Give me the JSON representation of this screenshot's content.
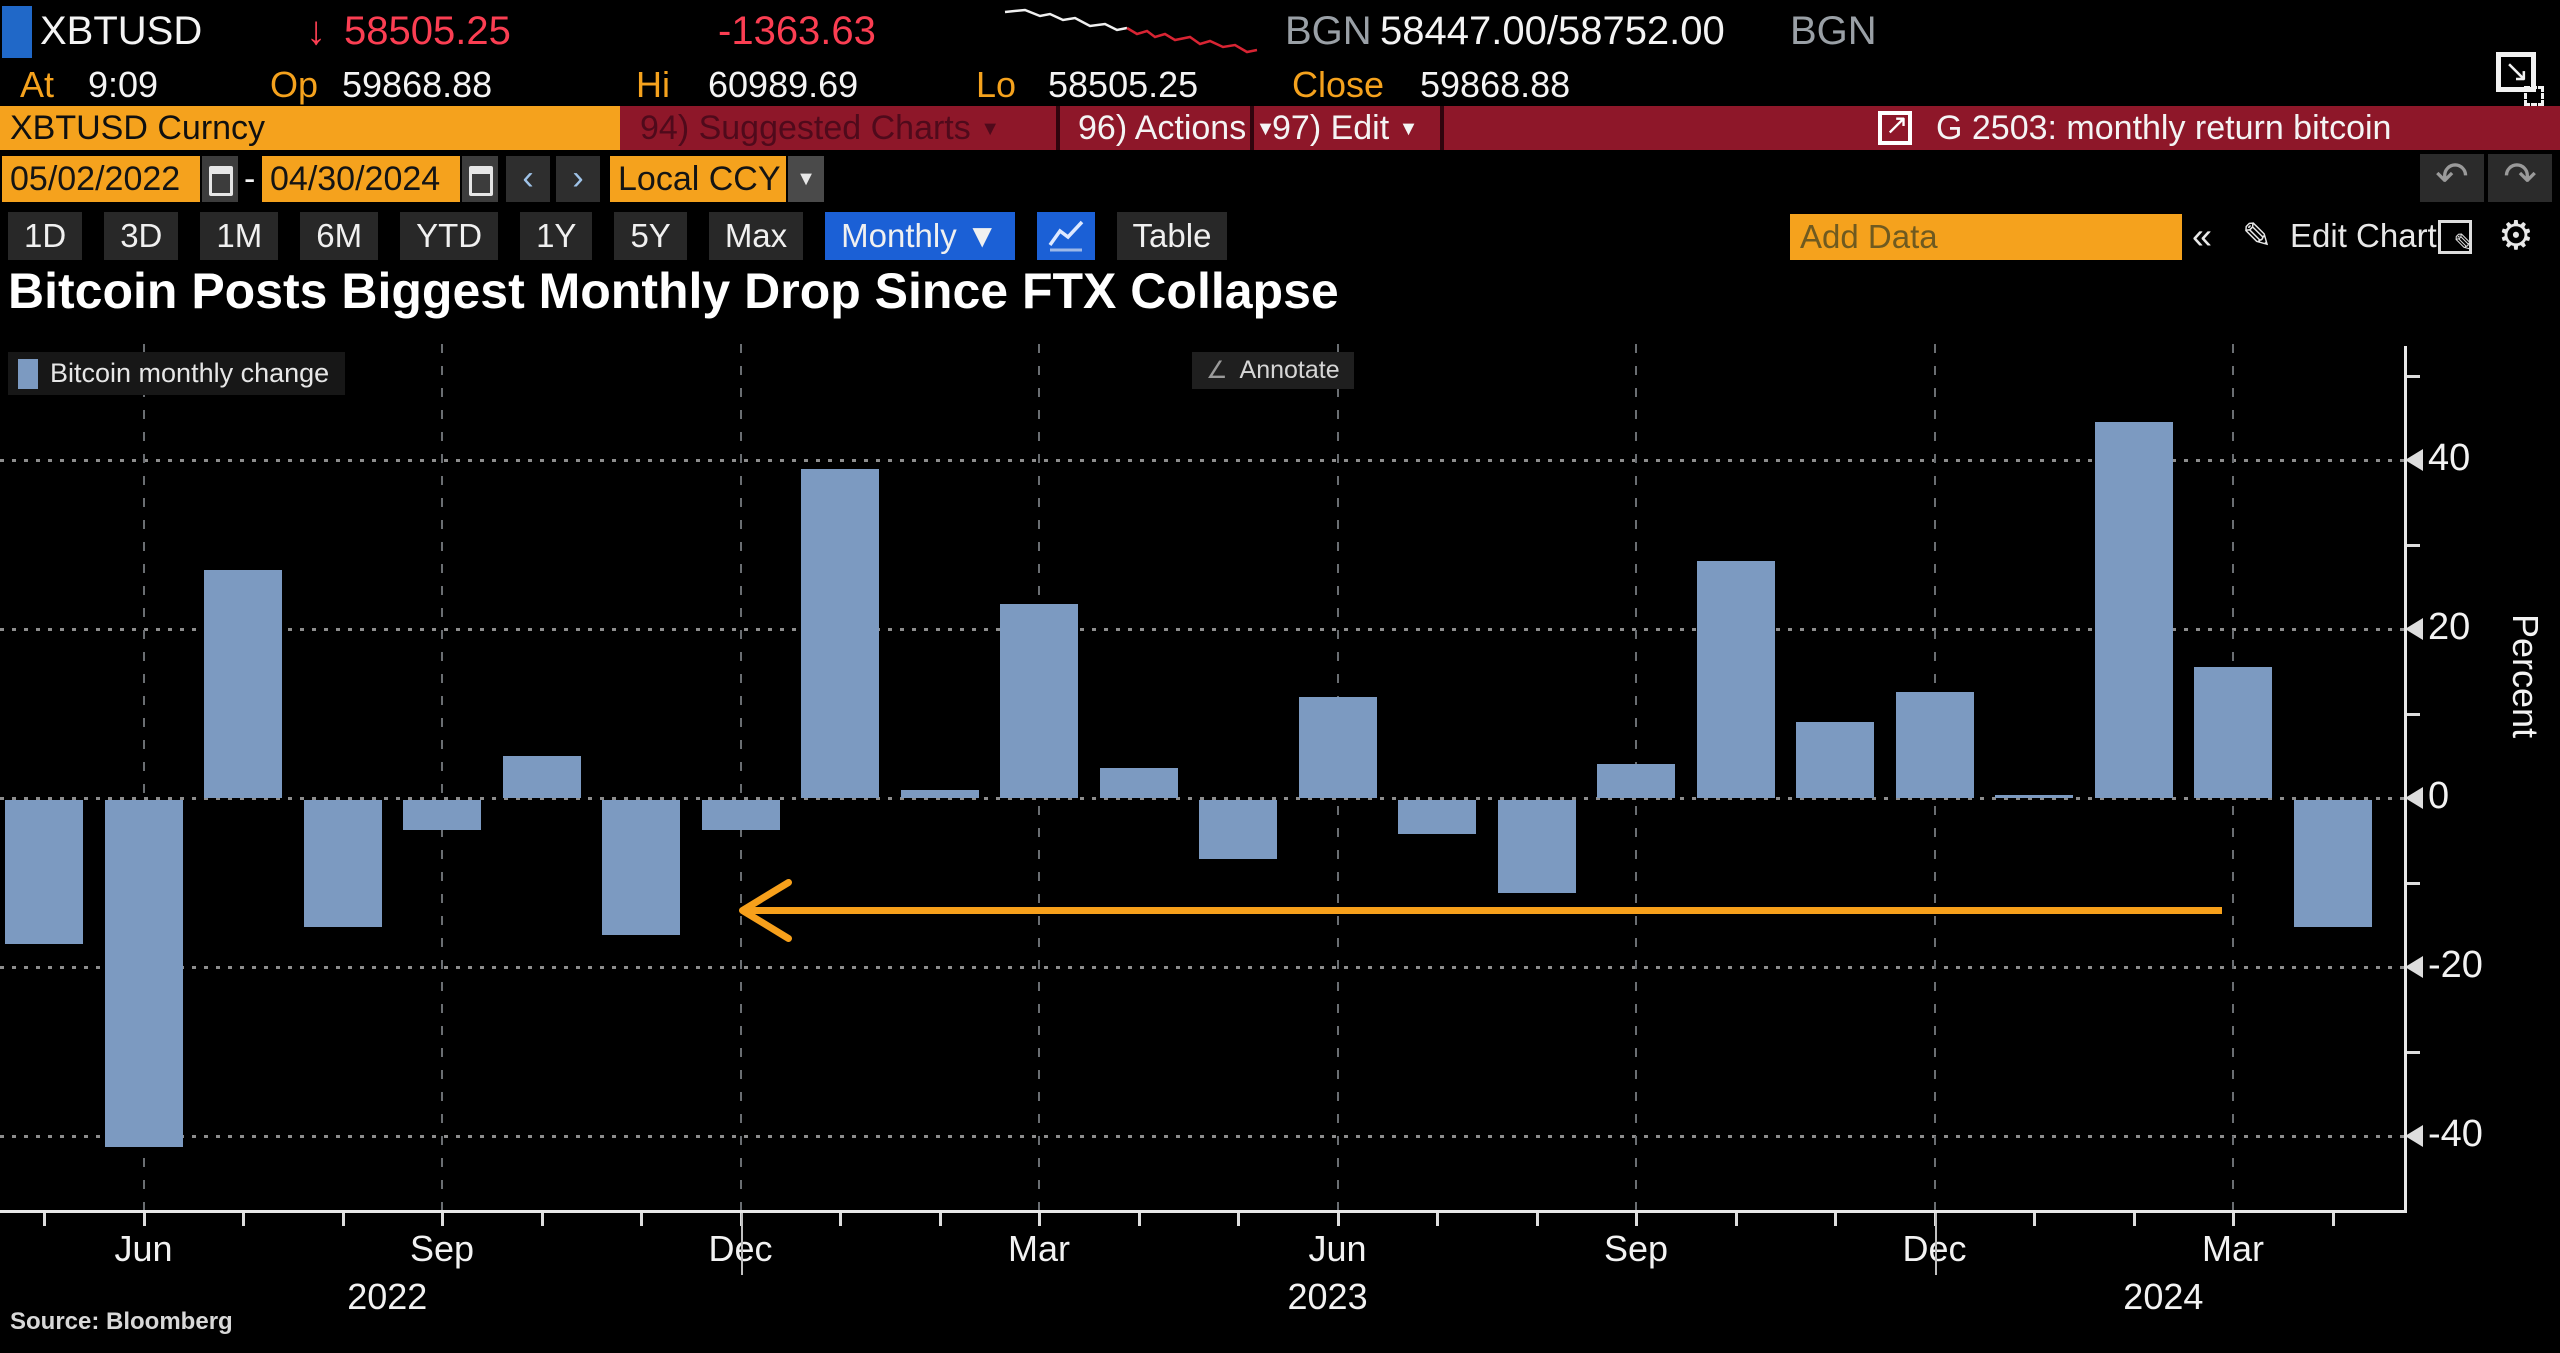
{
  "security_bar": {
    "ticker": "XBTUSD",
    "last_price": "58505.25",
    "change": "-1363.63",
    "source_badge_left": "BGN",
    "bid_ask": "58447.00/58752.00",
    "source_badge_right": "BGN",
    "at_label": "At",
    "at_time": "9:09",
    "open_label": "Op",
    "open_value": "59868.88",
    "high_label": "Hi",
    "high_value": "60989.69",
    "low_label": "Lo",
    "low_value": "58505.25",
    "close_label": "Close",
    "close_value": "59868.88"
  },
  "command_bar": {
    "security_field": "XBTUSD Curncy",
    "suggested_charts_label": "94) Suggested Charts",
    "actions_label": "96) Actions",
    "edit_label": "97) Edit",
    "chart_ref": "G 2503: monthly return bitcoin"
  },
  "toolbar": {
    "date_from": "05/02/2022",
    "date_separator": "-",
    "date_to": "04/30/2024",
    "currency_mode": "Local CCY",
    "periods": [
      "1D",
      "3D",
      "1M",
      "6M",
      "YTD",
      "1Y",
      "5Y",
      "Max"
    ],
    "frequency": "Monthly",
    "table_label": "Table",
    "add_data_placeholder": "Add Data",
    "edit_chart_label": "Edit Chart"
  },
  "icons": {
    "caret_down": "▼",
    "arrow_down": "↓",
    "prev": "‹",
    "next": "›",
    "undo": "↶",
    "redo": "↷",
    "collapse": "«",
    "pencil": "✎",
    "gear": "⚙",
    "launch_arrow": "↗",
    "monitor_arrow": "↘",
    "annotate_pencil": "∠"
  },
  "chart": {
    "title": "Bitcoin Posts Biggest Monthly Drop Since FTX Collapse",
    "legend_label": "Bitcoin monthly change",
    "annotate_label": "Annotate",
    "y_axis_title": "Percent",
    "source_note": "Source: Bloomberg"
  },
  "chart_data": {
    "type": "bar",
    "title": "Bitcoin Posts Biggest Monthly Drop Since FTX Collapse",
    "series_name": "Bitcoin monthly change",
    "xlabel": "",
    "ylabel": "Percent",
    "ylim": [
      -48.75,
      53.5
    ],
    "y_ticks": [
      40,
      20,
      0,
      -20,
      -40
    ],
    "y_minor_ticks": [
      50,
      30,
      10,
      -10,
      -30
    ],
    "grid": true,
    "legend_position": "top-left",
    "bar_color": "#7c9ac1",
    "categories": [
      "May 2022",
      "Jun 2022",
      "Jul 2022",
      "Aug 2022",
      "Sep 2022",
      "Oct 2022",
      "Nov 2022",
      "Dec 2022",
      "Jan 2023",
      "Feb 2023",
      "Mar 2023",
      "Apr 2023",
      "May 2023",
      "Jun 2023",
      "Jul 2023",
      "Aug 2023",
      "Sep 2023",
      "Oct 2023",
      "Nov 2023",
      "Dec 2023",
      "Jan 2024",
      "Feb 2024",
      "Mar 2024",
      "Apr 2024"
    ],
    "values": [
      -17,
      -41,
      27,
      -15,
      -3.5,
      5,
      -16,
      -3.5,
      39,
      1,
      23,
      3.5,
      -7,
      12,
      -4,
      -11,
      4,
      28,
      9,
      12.5,
      0.3,
      44.5,
      15.5,
      -15
    ],
    "x_tick_labels": [
      {
        "label": "Jun",
        "month_index": 1
      },
      {
        "label": "Sep",
        "month_index": 4
      },
      {
        "label": "Dec",
        "month_index": 7
      },
      {
        "label": "Mar",
        "month_index": 10
      },
      {
        "label": "Jun",
        "month_index": 13
      },
      {
        "label": "Sep",
        "month_index": 16
      },
      {
        "label": "Dec",
        "month_index": 19
      },
      {
        "label": "Mar",
        "month_index": 22
      }
    ],
    "year_labels": [
      {
        "label": "2022",
        "month_pos": 3.45
      },
      {
        "label": "2023",
        "month_pos": 12.9
      },
      {
        "label": "2024",
        "month_pos": 21.3
      }
    ],
    "year_separator_months": [
      7,
      19
    ],
    "annotation_arrow": {
      "from_month_index": 7,
      "to_month_index": 22,
      "y_value": -13.3,
      "color": "#f7a01b",
      "direction": "left"
    }
  }
}
